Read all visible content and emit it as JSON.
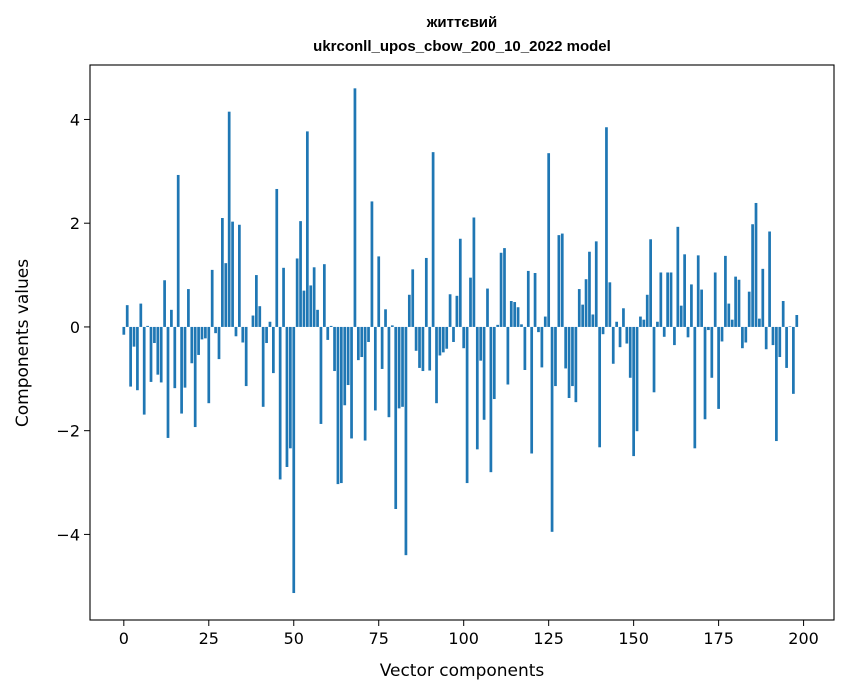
{
  "chart_data": {
    "type": "bar",
    "title_line1": "життєвий",
    "title_line2": "ukrconll_upos_cbow_200_10_2022 model",
    "xlabel": "Vector components",
    "ylabel": "Components values",
    "xlim": [
      -9.95,
      208.95
    ],
    "ylim": [
      -5.65,
      5.05
    ],
    "xticks": [
      0,
      25,
      50,
      75,
      100,
      125,
      150,
      175,
      200
    ],
    "yticks": [
      -4,
      -2,
      0,
      2,
      4
    ],
    "ytick_labels": [
      "−4",
      "−2",
      "0",
      "2",
      "4"
    ],
    "bar_color": "#1f77b4",
    "grid": false,
    "values": [
      -0.15,
      0.42,
      -1.15,
      -0.38,
      -1.22,
      0.45,
      -1.69,
      0.02,
      -1.06,
      -0.31,
      -0.92,
      -1.07,
      0.9,
      -2.14,
      0.33,
      -1.18,
      2.93,
      -1.67,
      -1.17,
      0.73,
      -0.7,
      -1.93,
      -0.54,
      -0.24,
      -0.22,
      -1.47,
      1.1,
      -0.12,
      -0.62,
      2.1,
      1.23,
      4.15,
      2.03,
      -0.18,
      1.97,
      -0.3,
      -1.14,
      0.0,
      0.22,
      1.0,
      0.4,
      -1.54,
      -0.31,
      0.1,
      -0.89,
      2.66,
      -2.94,
      1.14,
      -2.7,
      -2.34,
      -5.13,
      1.32,
      2.04,
      0.7,
      3.77,
      0.8,
      1.15,
      0.33,
      -1.87,
      1.21,
      -0.25,
      0.02,
      -0.85,
      -3.03,
      -3.01,
      -1.51,
      -1.12,
      -2.15,
      4.6,
      -0.64,
      -0.58,
      -2.19,
      -0.29,
      2.42,
      -1.61,
      1.36,
      -0.81,
      0.34,
      -1.74,
      0.03,
      -3.51,
      -1.57,
      -1.54,
      -4.4,
      0.62,
      1.11,
      -0.46,
      -0.79,
      -0.85,
      1.33,
      -0.84,
      3.37,
      -1.47,
      -0.55,
      -0.49,
      -0.42,
      0.63,
      -0.29,
      0.6,
      1.7,
      -0.41,
      -3.01,
      0.95,
      2.11,
      -2.36,
      -0.65,
      -1.79,
      0.74,
      -2.8,
      -1.39,
      0.04,
      1.43,
      1.52,
      -1.11,
      0.5,
      0.48,
      0.38,
      0.05,
      -0.83,
      1.08,
      -2.44,
      1.04,
      -0.1,
      -0.78,
      0.2,
      3.35,
      -3.95,
      -1.14,
      1.77,
      1.8,
      -0.8,
      -1.37,
      -1.14,
      -1.45,
      0.73,
      0.43,
      0.92,
      1.45,
      0.24,
      1.65,
      -2.32,
      -0.14,
      3.85,
      0.86,
      -0.71,
      0.1,
      -0.39,
      0.36,
      -0.32,
      -0.98,
      -2.49,
      -2.01,
      0.2,
      0.14,
      0.62,
      1.69,
      -1.26,
      0.1,
      1.05,
      -0.19,
      1.05,
      1.05,
      -0.35,
      1.93,
      0.41,
      1.4,
      -0.2,
      0.82,
      -2.34,
      1.38,
      0.72,
      -1.78,
      -0.06,
      -0.98,
      1.05,
      -1.58,
      -0.28,
      1.37,
      0.45,
      0.14,
      0.97,
      0.91,
      -0.41,
      -0.3,
      0.68,
      1.98,
      2.39,
      0.16,
      1.12,
      -0.43,
      1.84,
      -0.35,
      -2.2,
      -0.58,
      0.5,
      -0.79,
      0.01,
      -1.29,
      0.23
    ]
  }
}
